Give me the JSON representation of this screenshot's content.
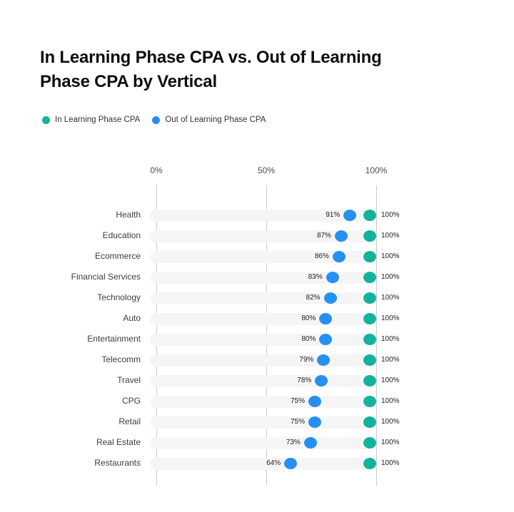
{
  "title": "In Learning Phase CPA vs. Out of Learning\nPhase CPA by Vertical",
  "legend": {
    "items": [
      {
        "label": "In Learning Phase CPA",
        "color": "#13b39b"
      },
      {
        "label": "Out of Learning Phase CPA",
        "color": "#2590f2"
      }
    ]
  },
  "axis": {
    "ticks": [
      {
        "label": "0%",
        "value": 0
      },
      {
        "label": "50%",
        "value": 50
      },
      {
        "label": "100%",
        "value": 100
      }
    ]
  },
  "chart_data": {
    "type": "scatter",
    "subtype": "horizontal-dot-plot",
    "title": "In Learning Phase CPA vs. Out of Learning Phase CPA by Vertical",
    "categories": [
      "Health",
      "Education",
      "Ecommerce",
      "Financial Services",
      "Technology",
      "Auto",
      "Entertainment",
      "Telecomm",
      "Travel",
      "CPG",
      "Retail",
      "Real Estate",
      "Restaurants"
    ],
    "series": [
      {
        "name": "In Learning Phase CPA",
        "color": "#13b39b",
        "values": [
          100,
          100,
          100,
          100,
          100,
          100,
          100,
          100,
          100,
          100,
          100,
          100,
          100
        ]
      },
      {
        "name": "Out of Learning Phase CPA",
        "color": "#2590f2",
        "values": [
          91,
          87,
          86,
          83,
          82,
          80,
          80,
          79,
          78,
          75,
          75,
          73,
          64
        ]
      }
    ],
    "xlabel": "",
    "ylabel": "",
    "xlim": [
      0,
      100
    ],
    "value_suffix": "%",
    "grid": "vertical-lines-at-ticks",
    "legend_position": "top-left"
  },
  "colors": {
    "title_text": "#0c0d0e",
    "category_text": "#3a3d40",
    "axis_text": "#4c4c4c",
    "value_text": "#1c1c1c",
    "track": "#f5f5f6",
    "gridline": "#cbcbcb",
    "in_learning": "#13b39b",
    "out_of_learning": "#2590f2"
  }
}
